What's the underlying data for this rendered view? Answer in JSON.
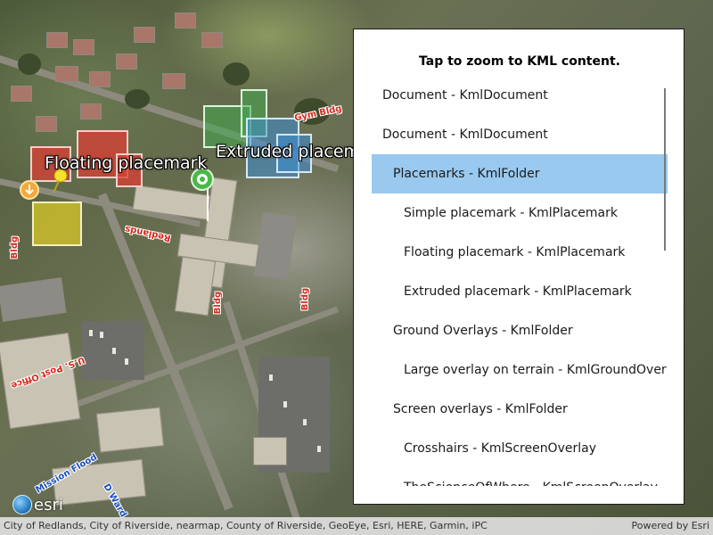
{
  "map": {
    "labels": {
      "floating": "Floating placemark",
      "extruded": "Extruded placem",
      "gym": "Gym Bldg",
      "redlands": "Redlands",
      "bldg1": "Bldg",
      "bldg2": "Bldg",
      "bldg3": "Bldg",
      "post_office": "U.S. Post Office",
      "mission": "Mission Flood",
      "ward": "D Ward"
    },
    "colors": {
      "floating_building": "#d64034",
      "simple_building": "#dac828",
      "extruded_green": "#46aa50",
      "extruded_blue": "#3c8cd2"
    }
  },
  "panel": {
    "title": "Tap to zoom to KML content.",
    "items": [
      {
        "label": "Document - KmlDocument",
        "level": 0,
        "selected": false
      },
      {
        "label": "Document - KmlDocument",
        "level": 0,
        "selected": false
      },
      {
        "label": "Placemarks - KmlFolder",
        "level": 1,
        "selected": true
      },
      {
        "label": "Simple placemark - KmlPlacemark",
        "level": 2,
        "selected": false
      },
      {
        "label": "Floating placemark - KmlPlacemark",
        "level": 2,
        "selected": false
      },
      {
        "label": "Extruded placemark - KmlPlacemark",
        "level": 2,
        "selected": false
      },
      {
        "label": "Ground Overlays - KmlFolder",
        "level": 1,
        "selected": false
      },
      {
        "label": "Large overlay on terrain - KmlGroundOverlay",
        "level": 2,
        "selected": false
      },
      {
        "label": "Screen overlays - KmlFolder",
        "level": 1,
        "selected": false
      },
      {
        "label": "Crosshairs - KmlScreenOverlay",
        "level": 2,
        "selected": false
      },
      {
        "label": "TheScienceOfWhere - KmlScreenOverlay",
        "level": 2,
        "selected": false
      }
    ],
    "selection_color": "#99c9ef"
  },
  "attribution": {
    "credits": "City of Redlands, City of Riverside, nearmap, County of Riverside, GeoEye, Esri, HERE, Garmin, iPC",
    "powered_by": "Powered by Esri",
    "logo_text": "esri"
  }
}
